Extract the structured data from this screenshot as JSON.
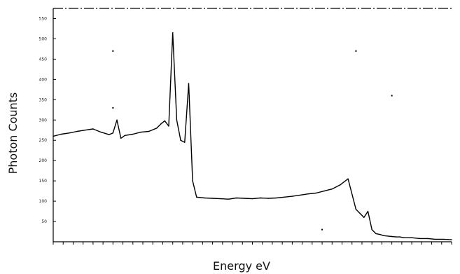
{
  "chart_data": {
    "type": "line",
    "title": "",
    "xlabel": "Energy eV",
    "ylabel": "Photon Counts",
    "xlim": [
      0,
      1000
    ],
    "ylim": [
      0,
      575
    ],
    "y_ticks": [
      50,
      100,
      150,
      200,
      250,
      300,
      350,
      400,
      450,
      500,
      550
    ],
    "grid": false,
    "legend": "none",
    "line_color": "#000000",
    "series": [
      {
        "x": [
          0,
          20,
          40,
          60,
          80,
          100,
          120,
          140,
          150,
          160,
          170,
          180,
          200,
          220,
          240,
          260,
          270,
          280,
          290,
          300,
          310,
          320,
          330,
          340,
          350,
          360,
          380,
          400,
          420,
          440,
          460,
          480,
          500,
          520,
          540,
          560,
          580,
          600,
          620,
          640,
          660,
          680,
          700,
          720,
          740,
          760,
          770,
          780,
          790,
          800,
          810,
          820,
          830,
          840,
          850,
          860,
          870,
          880,
          900,
          920,
          940,
          960,
          980,
          1000
        ],
        "values": [
          260,
          265,
          268,
          272,
          275,
          278,
          270,
          264,
          268,
          300,
          255,
          262,
          265,
          270,
          272,
          280,
          290,
          298,
          285,
          515,
          300,
          250,
          245,
          390,
          150,
          110,
          108,
          107,
          106,
          105,
          108,
          107,
          106,
          108,
          107,
          108,
          110,
          112,
          115,
          118,
          120,
          125,
          130,
          140,
          155,
          80,
          70,
          60,
          75,
          30,
          20,
          18,
          15,
          14,
          13,
          12,
          12,
          10,
          10,
          8,
          8,
          6,
          6,
          5
        ]
      }
    ]
  }
}
